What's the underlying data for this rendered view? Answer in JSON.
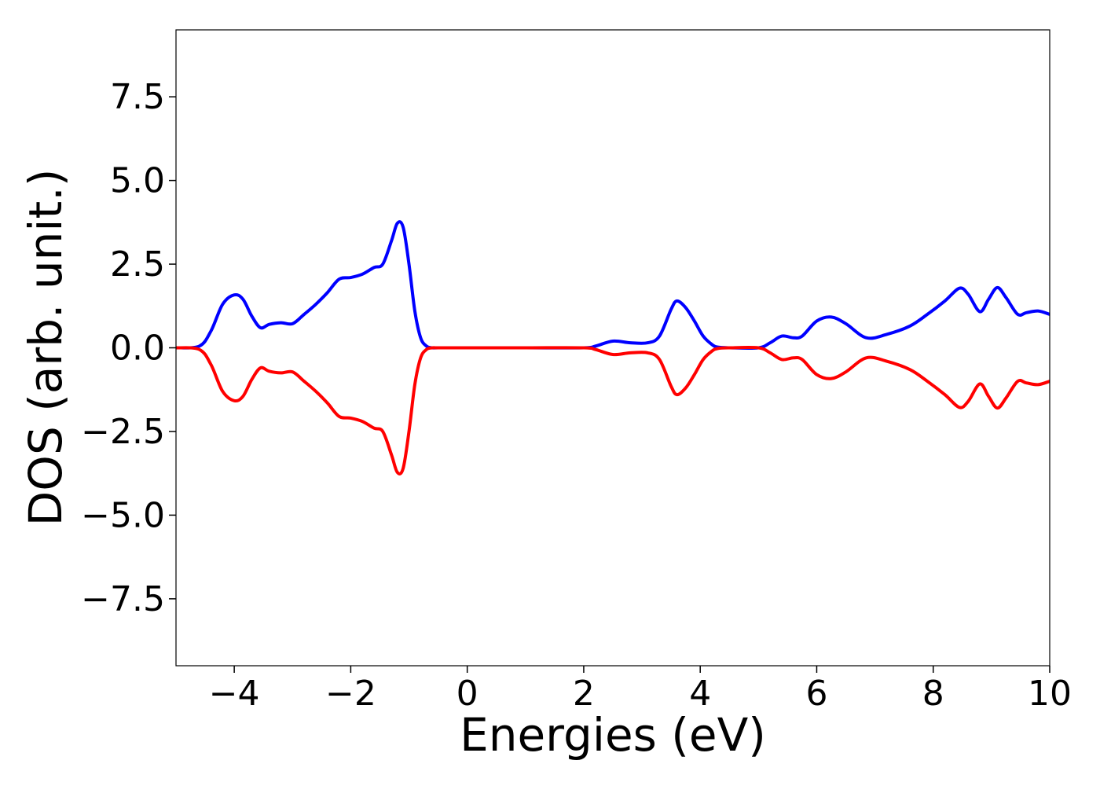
{
  "chart_data": {
    "type": "line",
    "title": "",
    "xlabel": "Energies (eV)",
    "ylabel": "DOS (arb. unit.)",
    "xlim": [
      -5,
      10
    ],
    "ylim": [
      -9.5,
      9.5
    ],
    "xticks": [
      -4,
      -2,
      0,
      2,
      4,
      6,
      8,
      10
    ],
    "xtick_labels": [
      "−4",
      "−2",
      "0",
      "2",
      "4",
      "6",
      "8",
      "10"
    ],
    "yticks": [
      7.5,
      5.0,
      2.5,
      0.0,
      -2.5,
      -5.0,
      -7.5
    ],
    "ytick_labels": [
      "7.5",
      "5.0",
      "2.5",
      "0.0",
      "−2.5",
      "−5.0",
      "−7.5"
    ],
    "grid": false,
    "legend": "none",
    "x": [
      -5.0,
      -4.6,
      -4.4,
      -4.2,
      -4.0,
      -3.85,
      -3.7,
      -3.55,
      -3.4,
      -3.2,
      -3.0,
      -2.8,
      -2.6,
      -2.4,
      -2.2,
      -2.0,
      -1.8,
      -1.6,
      -1.45,
      -1.3,
      -1.2,
      -1.1,
      -1.0,
      -0.9,
      -0.8,
      -0.7,
      -0.6,
      -0.5,
      0.0,
      1.0,
      2.0,
      2.2,
      2.5,
      2.8,
      3.1,
      3.3,
      3.5,
      3.6,
      3.75,
      3.9,
      4.05,
      4.2,
      4.3,
      4.5,
      5.0,
      5.2,
      5.4,
      5.6,
      5.75,
      6.0,
      6.25,
      6.5,
      6.85,
      7.2,
      7.6,
      7.9,
      8.2,
      8.45,
      8.6,
      8.8,
      8.95,
      9.1,
      9.25,
      9.45,
      9.6,
      9.8,
      10.0
    ],
    "series": [
      {
        "color": "#0000ff",
        "values": [
          0.0,
          0.05,
          0.5,
          1.3,
          1.58,
          1.45,
          0.95,
          0.6,
          0.7,
          0.75,
          0.72,
          1.0,
          1.3,
          1.65,
          2.05,
          2.1,
          2.2,
          2.4,
          2.5,
          3.2,
          3.72,
          3.6,
          2.5,
          1.1,
          0.3,
          0.05,
          0.0,
          0.0,
          0.0,
          0.0,
          0.0,
          0.05,
          0.2,
          0.15,
          0.15,
          0.35,
          1.15,
          1.4,
          1.2,
          0.8,
          0.35,
          0.1,
          0.02,
          0.0,
          0.0,
          0.15,
          0.35,
          0.3,
          0.35,
          0.8,
          0.92,
          0.72,
          0.3,
          0.4,
          0.65,
          1.0,
          1.4,
          1.78,
          1.6,
          1.08,
          1.45,
          1.8,
          1.5,
          1.0,
          1.05,
          1.1,
          1.0
        ]
      },
      {
        "color": "#ff0000",
        "values": [
          0.0,
          -0.05,
          -0.5,
          -1.3,
          -1.58,
          -1.45,
          -0.95,
          -0.6,
          -0.7,
          -0.75,
          -0.72,
          -1.0,
          -1.3,
          -1.65,
          -2.05,
          -2.1,
          -2.2,
          -2.4,
          -2.5,
          -3.2,
          -3.72,
          -3.6,
          -2.5,
          -1.1,
          -0.3,
          -0.05,
          0.0,
          0.0,
          0.0,
          0.0,
          0.0,
          -0.05,
          -0.2,
          -0.15,
          -0.15,
          -0.35,
          -1.15,
          -1.4,
          -1.2,
          -0.8,
          -0.35,
          -0.1,
          -0.02,
          0.0,
          0.0,
          -0.15,
          -0.35,
          -0.3,
          -0.35,
          -0.8,
          -0.92,
          -0.72,
          -0.3,
          -0.4,
          -0.65,
          -1.0,
          -1.4,
          -1.78,
          -1.6,
          -1.08,
          -1.45,
          -1.8,
          -1.5,
          -1.0,
          -1.05,
          -1.1,
          -1.0
        ]
      }
    ]
  }
}
